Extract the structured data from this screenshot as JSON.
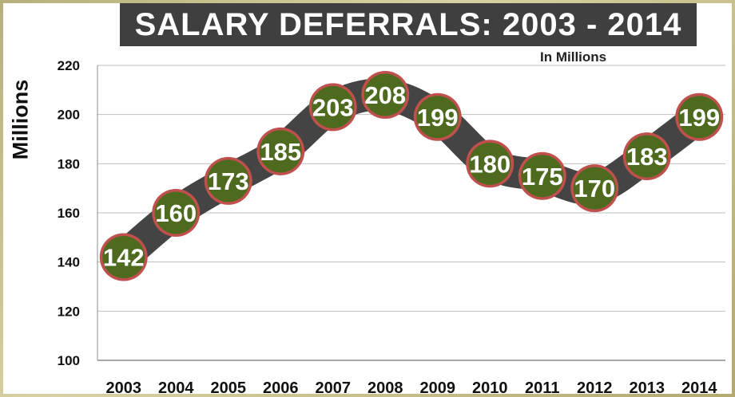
{
  "title": "SALARY DEFERRALS: 2003 - 2014",
  "subtitle": "In Millions",
  "chart_data": {
    "type": "line",
    "title": "SALARY DEFERRALS: 2003 - 2014",
    "subtitle": "In Millions",
    "xlabel": "",
    "ylabel": "Millions",
    "categories": [
      "2003",
      "2004",
      "2005",
      "2006",
      "2007",
      "2008",
      "2009",
      "2010",
      "2011",
      "2012",
      "2013",
      "2014"
    ],
    "values": [
      142,
      160,
      173,
      185,
      203,
      208,
      199,
      180,
      175,
      170,
      183,
      199
    ],
    "ylim": [
      100,
      220
    ],
    "yticks": [
      100,
      120,
      140,
      160,
      180,
      200,
      220
    ],
    "grid": true,
    "colors": {
      "band": "#3a3a3a",
      "marker_fill": "#4d6a1e",
      "marker_ring": "#c0504d",
      "title_bg": "#3f3f3f"
    }
  }
}
